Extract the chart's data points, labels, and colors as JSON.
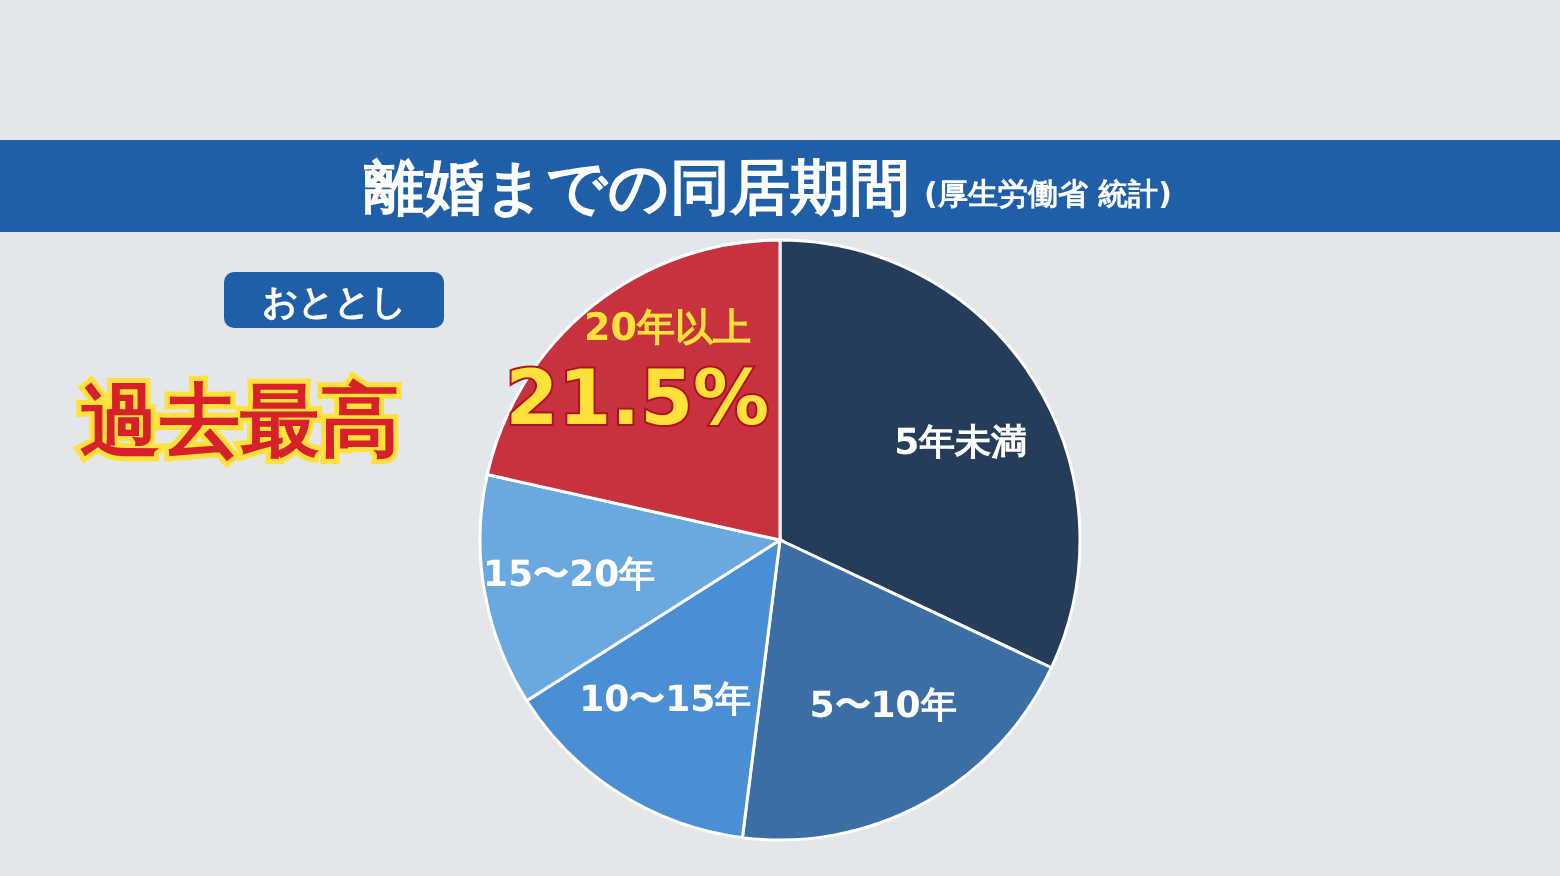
{
  "chart_data": {
    "type": "pie",
    "title": "離婚までの同居期間",
    "subtitle": "(厚生労働省 統計)",
    "categories": [
      "5年未満",
      "5〜10年",
      "10〜15年",
      "15〜20年",
      "20年以上"
    ],
    "values": [
      32,
      20,
      14,
      12.5,
      21.5
    ],
    "colors": [
      "#253d5b",
      "#3a6ea5",
      "#4a8fd4",
      "#6aa8e0",
      "#c8323f"
    ],
    "value_labels": [
      null,
      null,
      null,
      null,
      "21.5%"
    ],
    "annotations": [
      "おととし",
      "過去最高"
    ]
  }
}
